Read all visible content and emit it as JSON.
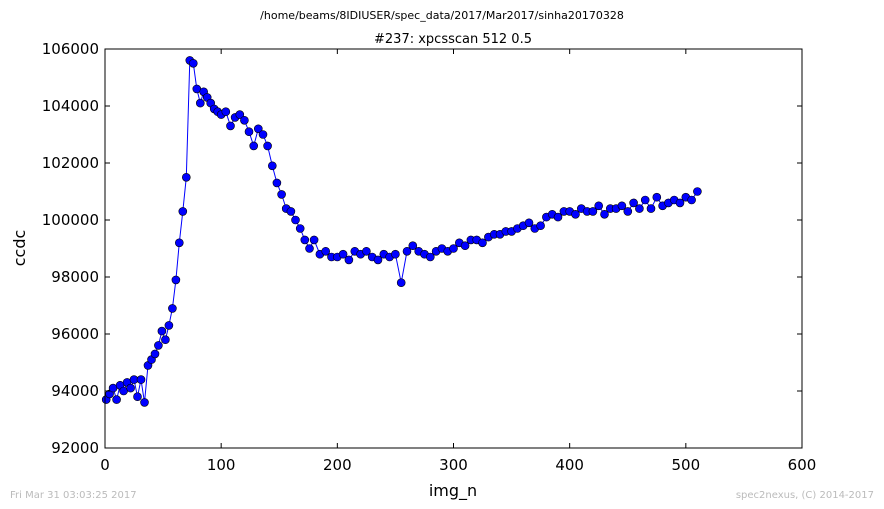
{
  "suptitle": "/home/beams/8IDIUSER/spec_data/2017/Mar2017/sinha20170328",
  "footer": {
    "left": "Fri Mar 31 03:03:25 2017",
    "right": "spec2nexus, (C) 2014-2017"
  },
  "colors": {
    "series": "#0000ff",
    "axes": "#000000",
    "footer": "#bbbbbb"
  },
  "chart_data": {
    "type": "line",
    "title": "#237: xpcsscan 512 0.5",
    "xlabel": "img_n",
    "ylabel": "ccdc",
    "xlim": [
      0,
      600
    ],
    "ylim": [
      92000,
      106000
    ],
    "xticks": [
      0,
      100,
      200,
      300,
      400,
      500,
      600
    ],
    "yticks": [
      92000,
      94000,
      96000,
      98000,
      100000,
      102000,
      104000,
      106000
    ],
    "grid": false,
    "marker": "circle",
    "series": [
      {
        "name": "",
        "x": [
          1,
          4,
          7,
          10,
          13,
          16,
          19,
          22,
          25,
          28,
          31,
          34,
          37,
          40,
          43,
          46,
          49,
          52,
          55,
          58,
          61,
          64,
          67,
          70,
          73,
          76,
          79,
          82,
          85,
          88,
          91,
          94,
          97,
          100,
          104,
          108,
          112,
          116,
          120,
          124,
          128,
          132,
          136,
          140,
          144,
          148,
          152,
          156,
          160,
          164,
          168,
          172,
          176,
          180,
          185,
          190,
          195,
          200,
          205,
          210,
          215,
          220,
          225,
          230,
          235,
          240,
          245,
          250,
          255,
          260,
          265,
          270,
          275,
          280,
          285,
          290,
          295,
          300,
          305,
          310,
          315,
          320,
          325,
          330,
          335,
          340,
          345,
          350,
          355,
          360,
          365,
          370,
          375,
          380,
          385,
          390,
          395,
          400,
          405,
          410,
          415,
          420,
          425,
          430,
          435,
          440,
          445,
          450,
          455,
          460,
          465,
          470,
          475,
          480,
          485,
          490,
          495,
          500,
          505,
          510
        ],
        "y": [
          93700,
          93900,
          94100,
          93700,
          94200,
          94000,
          94300,
          94100,
          94400,
          93800,
          94400,
          93600,
          94900,
          95100,
          95300,
          95600,
          96100,
          95800,
          96300,
          96900,
          97900,
          99200,
          100300,
          101500,
          105600,
          105500,
          104600,
          104100,
          104500,
          104300,
          104100,
          103900,
          103800,
          103700,
          103800,
          103300,
          103600,
          103700,
          103500,
          103100,
          102600,
          103200,
          103000,
          102600,
          101900,
          101300,
          100900,
          100400,
          100300,
          100000,
          99700,
          99300,
          99000,
          99300,
          98800,
          98900,
          98700,
          98700,
          98800,
          98600,
          98900,
          98800,
          98900,
          98700,
          98600,
          98800,
          98700,
          98800,
          97800,
          98900,
          99100,
          98900,
          98800,
          98700,
          98900,
          99000,
          98900,
          99000,
          99200,
          99100,
          99300,
          99300,
          99200,
          99400,
          99500,
          99500,
          99600,
          99600,
          99700,
          99800,
          99900,
          99700,
          99800,
          100100,
          100200,
          100100,
          100300,
          100300,
          100200,
          100400,
          100300,
          100300,
          100500,
          100200,
          100400,
          100400,
          100500,
          100300,
          100600,
          100400,
          100700,
          100400,
          100800,
          100500,
          100600,
          100700,
          100600,
          100800,
          100700,
          101000
        ]
      }
    ]
  }
}
